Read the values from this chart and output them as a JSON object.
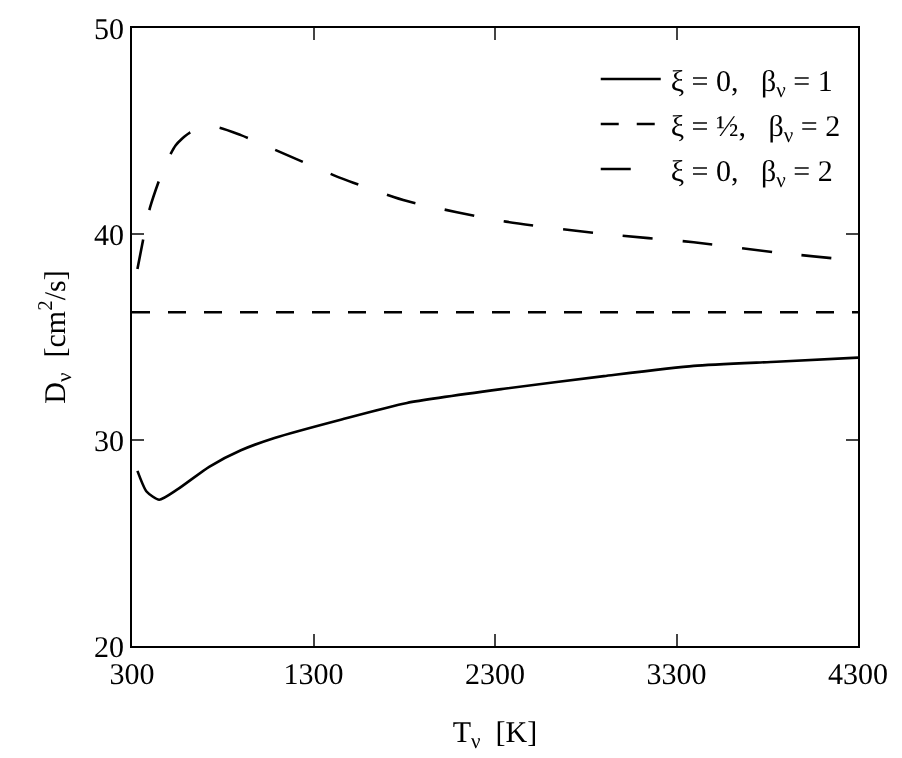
{
  "chart_data": {
    "type": "line",
    "xlabel": "T$_{ν}$  [K]",
    "ylabel": "D$_{ν}$  [cm$^{2}$/s]",
    "xlim": [
      300,
      4300
    ],
    "xticks": [
      300,
      1300,
      2300,
      3300,
      4300
    ],
    "ylim": [
      20,
      50
    ],
    "yticks": [
      20,
      30,
      40,
      50
    ],
    "legend": "top right",
    "marker": "none",
    "series": [
      {
        "name": "ξ = 0,   β$_{ν}$ = 1",
        "color": "#000000",
        "line_style": "solid",
        "x": [
          330,
          380,
          450,
          550,
          725,
          900,
          1085,
          1455,
          1815,
          2360,
          2900,
          3395,
          3850,
          4300
        ],
        "values": [
          28.5,
          27.5,
          27.1,
          27.6,
          28.7,
          29.5,
          30.1,
          31.0,
          31.8,
          32.5,
          33.1,
          33.6,
          33.8,
          34.0
        ]
      },
      {
        "name": "ξ = ½,   β$_{ν}$ = 2",
        "color": "#000000",
        "line_style": "dotted",
        "x": [
          300,
          4300
        ],
        "values": [
          36.2,
          36.2
        ]
      },
      {
        "name": "ξ = 0,   β$_{ν}$ = 2",
        "color": "#000000",
        "line_style": "dashed",
        "x": [
          330,
          400,
          475,
          540,
          615,
          758,
          900,
          1085,
          1455,
          1815,
          2360,
          2900,
          3395,
          3850,
          4300
        ],
        "values": [
          38.3,
          41.3,
          43.2,
          44.3,
          44.9,
          45.2,
          44.8,
          44.1,
          42.7,
          41.6,
          40.6,
          40.0,
          39.6,
          39.1,
          38.7
        ]
      }
    ]
  }
}
